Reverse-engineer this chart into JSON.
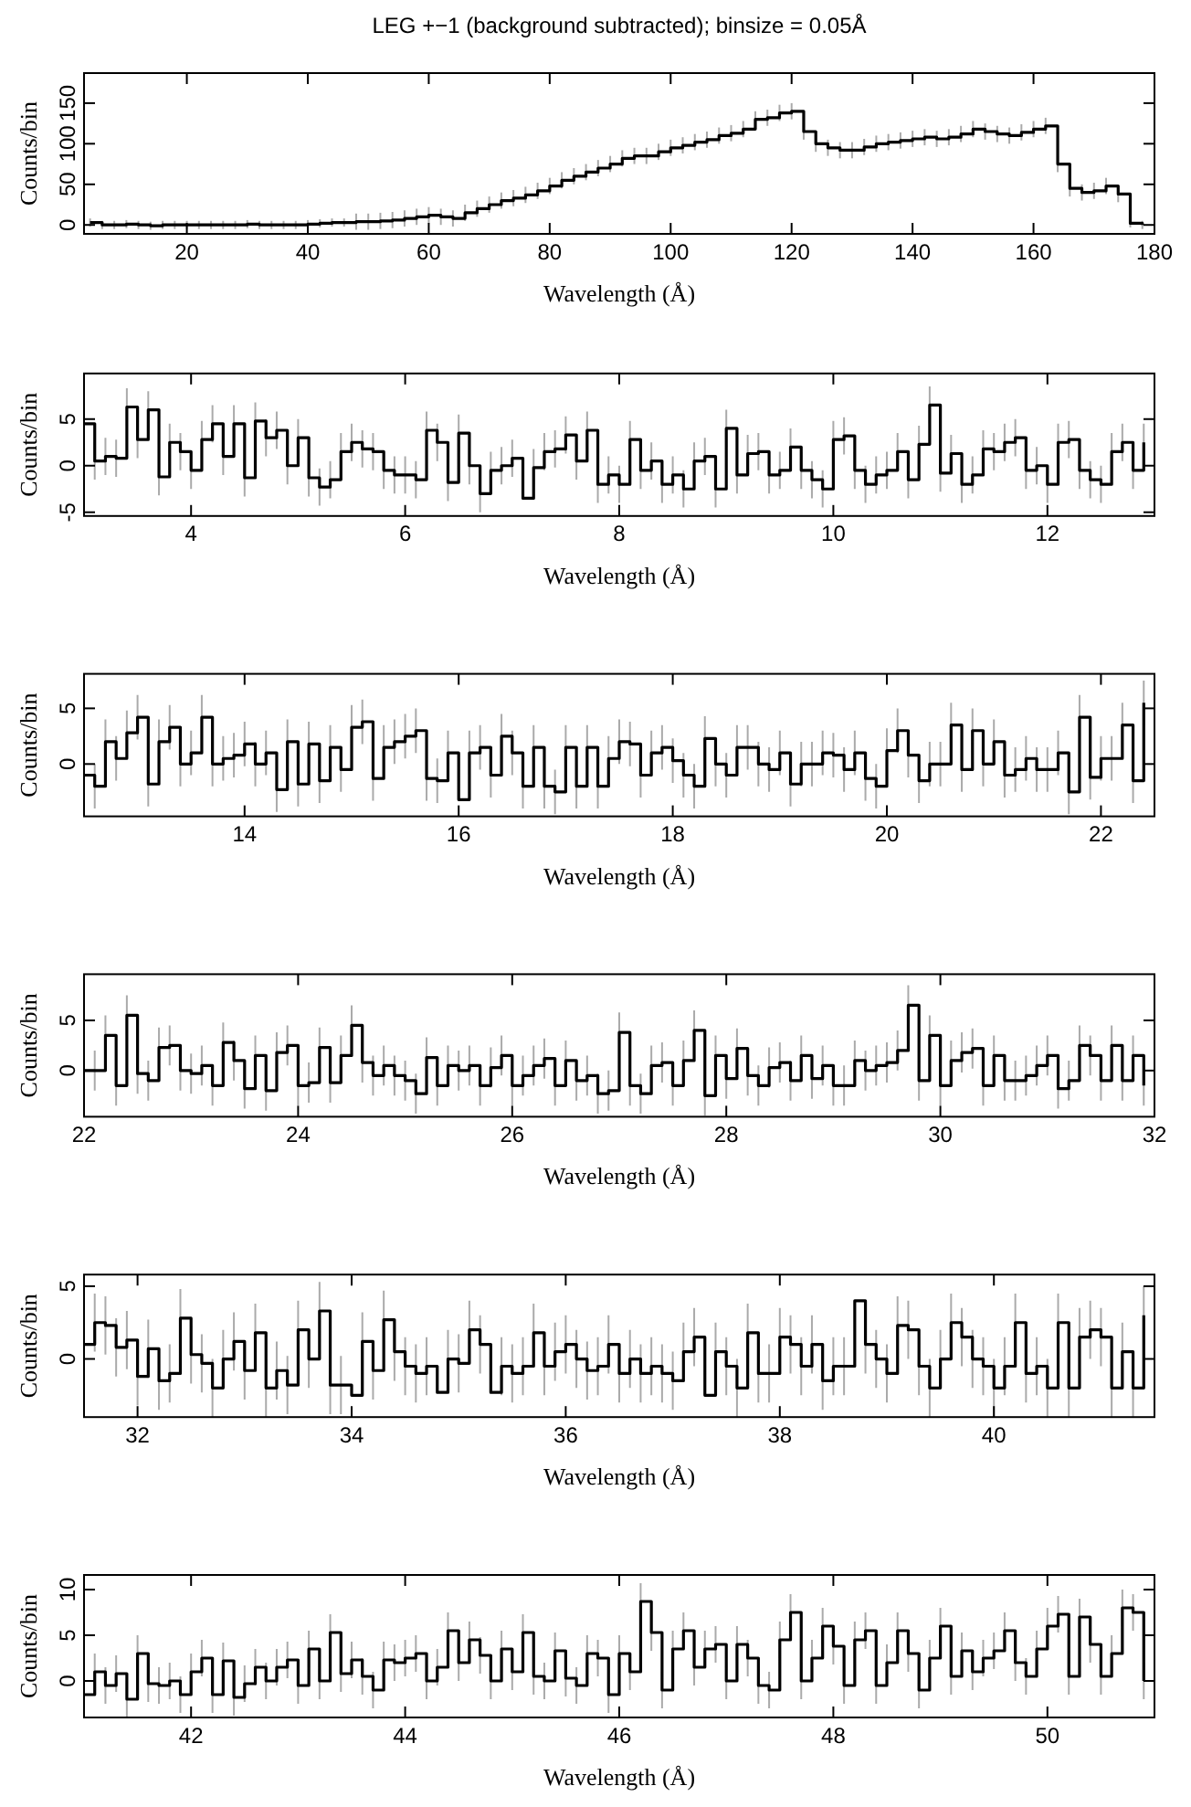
{
  "chart_data": [
    {
      "type": "step",
      "title": "LEG +−1 (background subtracted); binsize = 0.05Å",
      "xlabel": "Wavelength (Å)",
      "ylabel": "Counts/bin",
      "color": "#000000",
      "xlim": [
        3,
        180
      ],
      "ylim": [
        -11,
        187
      ],
      "xticks": [
        20,
        40,
        60,
        80,
        100,
        120,
        140,
        160,
        180
      ],
      "yticks": [
        0,
        50,
        100,
        150
      ],
      "x": [
        4,
        6,
        8,
        10,
        12,
        14,
        16,
        18,
        20,
        22,
        24,
        26,
        28,
        30,
        32,
        34,
        36,
        38,
        40,
        42,
        44,
        46,
        48,
        50,
        52,
        54,
        56,
        58,
        60,
        62,
        64,
        66,
        68,
        70,
        72,
        74,
        76,
        78,
        80,
        82,
        84,
        86,
        88,
        90,
        92,
        94,
        96,
        98,
        100,
        102,
        104,
        106,
        108,
        110,
        112,
        114,
        116,
        118,
        120,
        122,
        124,
        126,
        128,
        130,
        132,
        134,
        136,
        138,
        140,
        142,
        144,
        146,
        148,
        150,
        152,
        154,
        156,
        158,
        160,
        162,
        164,
        166,
        168,
        170,
        172,
        174,
        176,
        178
      ],
      "values": [
        3,
        0,
        0,
        1,
        0,
        -1,
        0,
        0,
        0,
        0,
        0,
        0,
        0,
        1,
        0,
        0,
        0,
        0,
        1,
        2,
        3,
        3,
        4,
        4,
        5,
        6,
        8,
        10,
        12,
        10,
        8,
        15,
        20,
        25,
        30,
        33,
        37,
        42,
        48,
        55,
        60,
        65,
        70,
        75,
        82,
        85,
        85,
        90,
        95,
        98,
        102,
        105,
        110,
        113,
        118,
        130,
        132,
        138,
        140,
        115,
        100,
        95,
        92,
        92,
        96,
        100,
        102,
        104,
        106,
        108,
        106,
        108,
        112,
        118,
        115,
        112,
        110,
        114,
        118,
        122,
        75,
        45,
        40,
        42,
        48,
        38,
        2,
        0
      ],
      "errors": [
        5,
        5,
        5,
        5,
        5,
        5,
        5,
        5,
        5,
        5,
        5,
        5,
        5,
        5,
        5,
        5,
        5,
        5,
        5,
        5,
        5,
        5,
        10,
        10,
        10,
        10,
        10,
        10,
        10,
        10,
        10,
        10,
        10,
        10,
        10,
        10,
        10,
        10,
        10,
        10,
        10,
        10,
        10,
        10,
        10,
        10,
        10,
        10,
        10,
        10,
        10,
        10,
        10,
        10,
        10,
        10,
        10,
        10,
        10,
        10,
        10,
        10,
        10,
        10,
        10,
        10,
        10,
        10,
        10,
        10,
        10,
        10,
        10,
        10,
        10,
        10,
        10,
        10,
        10,
        10,
        10,
        10,
        10,
        10,
        10,
        10,
        5,
        5
      ]
    },
    {
      "type": "step",
      "xlabel": "Wavelength (Å)",
      "ylabel": "Counts/bin",
      "color": "#000000",
      "xlim": [
        3,
        13
      ],
      "ylim": [
        -5.4,
        9.9
      ],
      "xticks": [
        4,
        6,
        8,
        10,
        12
      ],
      "yticks": [
        -5,
        0,
        5
      ],
      "x": [
        3.0,
        3.1,
        3.2,
        3.3,
        3.4,
        3.5,
        3.6,
        3.7,
        3.8,
        3.9,
        4.0,
        4.1,
        4.2,
        4.3,
        4.4,
        4.5,
        4.6,
        4.7,
        4.8,
        4.9,
        5.0,
        5.1,
        5.2,
        5.3,
        5.4,
        5.5,
        5.6,
        5.7,
        5.8,
        5.9,
        6.0,
        6.1,
        6.2,
        6.3,
        6.4,
        6.5,
        6.6,
        6.7,
        6.8,
        6.9,
        7.0,
        7.1,
        7.2,
        7.3,
        7.4,
        7.5,
        7.6,
        7.7,
        7.8,
        7.9,
        8.0,
        8.1,
        8.2,
        8.3,
        8.4,
        8.5,
        8.6,
        8.7,
        8.8,
        8.9,
        9.0,
        9.1,
        9.2,
        9.3,
        9.4,
        9.5,
        9.6,
        9.7,
        9.8,
        9.9,
        10.0,
        10.1,
        10.2,
        10.3,
        10.4,
        10.5,
        10.6,
        10.7,
        10.8,
        10.9,
        11.0,
        11.1,
        11.2,
        11.3,
        11.4,
        11.5,
        11.6,
        11.7,
        11.8,
        11.9,
        12.0,
        12.1,
        12.2,
        12.3,
        12.4,
        12.5,
        12.6,
        12.7,
        12.8,
        12.9
      ],
      "values": [
        4.5,
        0.5,
        1,
        0.8,
        6.3,
        2.8,
        6,
        -1.2,
        2.5,
        1.5,
        -0.5,
        2.8,
        4.5,
        1,
        4.5,
        -1.3,
        4.8,
        3,
        3.8,
        0,
        3,
        -1.3,
        -2.3,
        -1.5,
        1.5,
        2.5,
        1.8,
        1.5,
        -0.5,
        -1,
        -1,
        -1.5,
        3.8,
        2.5,
        -1.8,
        3.5,
        0,
        -3,
        -0.5,
        0,
        0.8,
        -3.5,
        -0.2,
        1.5,
        1.8,
        3.3,
        0.5,
        3.8,
        -2,
        -1,
        -2,
        2.8,
        -0.5,
        0.5,
        -2,
        -1,
        -2.5,
        0.5,
        1,
        -2.5,
        4,
        -1,
        1.3,
        1.5,
        -1,
        -0.5,
        2,
        -0.5,
        -1.5,
        -2.5,
        2.8,
        3.2,
        -0.5,
        -2,
        -1,
        -0.5,
        1.5,
        -1.5,
        2.3,
        6.5,
        -0.8,
        1.3,
        -2,
        -1,
        1.8,
        1.5,
        2.5,
        3,
        -0.5,
        0,
        -2,
        2.5,
        2.8,
        -0.5,
        -1.5,
        -2,
        1.5,
        2.5,
        -0.5,
        2.5
      ],
      "errors": [
        2,
        2,
        2,
        2,
        2,
        2,
        2,
        2,
        2,
        2,
        2,
        2,
        2,
        2,
        2,
        2,
        2,
        2,
        2,
        2,
        2,
        2,
        2,
        2,
        2,
        2,
        2,
        2,
        2,
        2,
        2,
        2,
        2,
        2,
        2,
        2,
        2,
        2,
        2,
        2,
        2,
        null,
        2,
        2,
        2,
        2,
        2,
        2,
        2,
        2,
        2,
        2,
        2,
        2,
        2,
        2,
        2,
        2,
        2,
        2,
        2,
        2,
        2,
        2,
        2,
        2,
        2,
        2,
        2,
        2,
        2,
        2,
        2,
        2,
        2,
        2,
        2,
        2,
        2,
        2,
        2,
        2,
        2,
        2,
        2,
        2,
        2,
        2,
        2,
        2,
        2,
        2,
        2,
        2,
        2,
        2,
        2,
        2,
        2,
        2
      ]
    },
    {
      "type": "step",
      "xlabel": "Wavelength (Å)",
      "ylabel": "Counts/bin",
      "color": "#000000",
      "xlim": [
        12.5,
        22.5
      ],
      "ylim": [
        -4.7,
        8.1
      ],
      "xticks": [
        14,
        16,
        18,
        20,
        22
      ],
      "yticks": [
        0,
        5
      ],
      "x": [
        12.5,
        12.6,
        12.7,
        12.8,
        12.9,
        13.0,
        13.1,
        13.2,
        13.3,
        13.4,
        13.5,
        13.6,
        13.7,
        13.8,
        13.9,
        14.0,
        14.1,
        14.2,
        14.3,
        14.4,
        14.5,
        14.6,
        14.7,
        14.8,
        14.9,
        15.0,
        15.1,
        15.2,
        15.3,
        15.4,
        15.5,
        15.6,
        15.7,
        15.8,
        15.9,
        16.0,
        16.1,
        16.2,
        16.3,
        16.4,
        16.5,
        16.6,
        16.7,
        16.8,
        16.9,
        17.0,
        17.1,
        17.2,
        17.3,
        17.4,
        17.5,
        17.6,
        17.7,
        17.8,
        17.9,
        18.0,
        18.1,
        18.2,
        18.3,
        18.4,
        18.5,
        18.6,
        18.7,
        18.8,
        18.9,
        19.0,
        19.1,
        19.2,
        19.3,
        19.4,
        19.5,
        19.6,
        19.7,
        19.8,
        19.9,
        20.0,
        20.1,
        20.2,
        20.3,
        20.4,
        20.5,
        20.6,
        20.7,
        20.8,
        20.9,
        21.0,
        21.1,
        21.2,
        21.3,
        21.4,
        21.5,
        21.6,
        21.7,
        21.8,
        21.9,
        22.0,
        22.1,
        22.2,
        22.3,
        22.4
      ],
      "values": [
        -1,
        -2,
        2,
        0.5,
        2.8,
        4.2,
        -1.8,
        2,
        3.3,
        0,
        1,
        4.2,
        0,
        0.5,
        0.8,
        1.8,
        0,
        1,
        -2.3,
        2,
        -1.8,
        1.8,
        -1.5,
        1.5,
        -0.5,
        3.3,
        3.8,
        -1.3,
        1.5,
        2,
        2.5,
        3,
        -1.3,
        -1.5,
        1,
        -3.2,
        1,
        1.5,
        -1,
        2.5,
        1,
        -2,
        1.5,
        -2,
        -2.5,
        1.5,
        -2,
        1.5,
        -2,
        0.5,
        2,
        1.8,
        -1,
        1,
        1.5,
        0.3,
        -1,
        -2,
        2.3,
        0,
        -1,
        1.5,
        1.5,
        0,
        -0.5,
        1,
        -1.8,
        0,
        0,
        1,
        0.8,
        -0.5,
        1,
        -1.3,
        -2,
        1.2,
        3,
        0.8,
        -1.5,
        0,
        0,
        3.5,
        -0.5,
        3,
        0,
        2,
        -1,
        -0.5,
        0.5,
        -0.5,
        -0.5,
        1,
        -2.5,
        4.2,
        -1.2,
        0.5,
        0.5,
        3.5,
        -1.5,
        5.5
      ],
      "errors": [
        2,
        2,
        2,
        2,
        2,
        2,
        2,
        2,
        2,
        2,
        2,
        2,
        2,
        2,
        2,
        2,
        2,
        2,
        2,
        2,
        2,
        2,
        2,
        2,
        2,
        2,
        2,
        2,
        2,
        2,
        2,
        2,
        2,
        2,
        2,
        null,
        2,
        2,
        2,
        2,
        2,
        2,
        2,
        2,
        2,
        2,
        2,
        2,
        2,
        2,
        2,
        2,
        2,
        2,
        2,
        2,
        2,
        2,
        2,
        2,
        2,
        2,
        2,
        2,
        2,
        2,
        2,
        2,
        2,
        2,
        2,
        2,
        2,
        2,
        2,
        2,
        2,
        2,
        2,
        2,
        2,
        2,
        2,
        2,
        2,
        2,
        2,
        2,
        2,
        2,
        2,
        2,
        2,
        2,
        2,
        2,
        2,
        2,
        2,
        2
      ]
    },
    {
      "type": "step",
      "xlabel": "Wavelength (Å)",
      "ylabel": "Counts/bin",
      "color": "#000000",
      "xlim": [
        22,
        32
      ],
      "ylim": [
        -4.6,
        9.6
      ],
      "xticks": [
        22,
        24,
        26,
        28,
        30,
        32
      ],
      "yticks": [
        0,
        5
      ],
      "x": [
        22.0,
        22.1,
        22.2,
        22.3,
        22.4,
        22.5,
        22.6,
        22.7,
        22.8,
        22.9,
        23.0,
        23.1,
        23.2,
        23.3,
        23.4,
        23.5,
        23.6,
        23.7,
        23.8,
        23.9,
        24.0,
        24.1,
        24.2,
        24.3,
        24.4,
        24.5,
        24.6,
        24.7,
        24.8,
        24.9,
        25.0,
        25.1,
        25.2,
        25.3,
        25.4,
        25.5,
        25.6,
        25.7,
        25.8,
        25.9,
        26.0,
        26.1,
        26.2,
        26.3,
        26.4,
        26.5,
        26.6,
        26.7,
        26.8,
        26.9,
        27.0,
        27.1,
        27.2,
        27.3,
        27.4,
        27.5,
        27.6,
        27.7,
        27.8,
        27.9,
        28.0,
        28.1,
        28.2,
        28.3,
        28.4,
        28.5,
        28.6,
        28.7,
        28.8,
        28.9,
        29.0,
        29.1,
        29.2,
        29.3,
        29.4,
        29.5,
        29.6,
        29.7,
        29.8,
        29.9,
        30.0,
        30.1,
        30.2,
        30.3,
        30.4,
        30.5,
        30.6,
        30.7,
        30.8,
        30.9,
        31.0,
        31.1,
        31.2,
        31.3,
        31.4,
        31.5,
        31.6,
        31.7,
        31.8,
        31.9
      ],
      "values": [
        0,
        0,
        3.5,
        -1.5,
        5.5,
        -0.3,
        -1,
        2.3,
        2.5,
        0,
        -0.3,
        0.5,
        -1.5,
        2.8,
        1,
        -1.8,
        1.5,
        -2,
        1.8,
        2.5,
        -1.5,
        -1.2,
        2.3,
        -1.2,
        1.5,
        4.5,
        0.8,
        -0.5,
        0.5,
        -0.5,
        -1,
        -2.3,
        1.3,
        -1.5,
        0.5,
        0,
        0.5,
        -1.5,
        0.3,
        1.5,
        -1.5,
        -0.5,
        0.5,
        1.2,
        -1.5,
        1,
        -1,
        -0.5,
        -2.3,
        -2,
        3.8,
        -1.5,
        -2.3,
        0.5,
        0.8,
        -1.5,
        1,
        4,
        -2.5,
        1.5,
        -0.8,
        2.2,
        -0.5,
        -1.5,
        0.3,
        0.8,
        -1,
        1.5,
        -0.8,
        0.5,
        -1.5,
        -1.5,
        1,
        0,
        0.5,
        0.8,
        2,
        6.5,
        -1,
        3.5,
        -1.5,
        1,
        1.8,
        2.2,
        -1.5,
        1.5,
        -1,
        -1,
        -0.5,
        0.5,
        1.5,
        -1.8,
        -1,
        2.5,
        1.5,
        -1,
        2.5,
        -1,
        1.5,
        -1.5
      ],
      "errors": [
        2,
        2,
        2,
        2,
        2,
        2,
        2,
        2,
        2,
        2,
        2,
        2,
        2,
        2,
        2,
        2,
        2,
        2,
        2,
        2,
        2,
        2,
        2,
        2,
        2,
        2,
        2,
        2,
        2,
        2,
        2,
        2,
        2,
        2,
        2,
        2,
        2,
        2,
        2,
        2,
        2,
        2,
        2,
        2,
        2,
        2,
        2,
        2,
        2,
        2,
        2,
        2,
        2,
        2,
        2,
        2,
        2,
        2,
        2,
        2,
        2,
        2,
        2,
        2,
        2,
        2,
        2,
        2,
        2,
        2,
        2,
        2,
        2,
        2,
        2,
        2,
        2,
        2,
        2,
        2,
        2,
        2,
        2,
        2,
        2,
        2,
        2,
        2,
        2,
        2,
        2,
        2,
        2,
        2,
        2,
        2,
        2,
        2,
        2,
        2
      ]
    },
    {
      "type": "step",
      "xlabel": "Wavelength (Å)",
      "ylabel": "Counts/bin",
      "color": "#000000",
      "xlim": [
        31.5,
        41.5
      ],
      "ylim": [
        -4,
        5.8
      ],
      "xticks": [
        32,
        34,
        36,
        38,
        40
      ],
      "yticks": [
        0,
        5
      ],
      "x": [
        31.5,
        31.6,
        31.7,
        31.8,
        31.9,
        32.0,
        32.1,
        32.2,
        32.3,
        32.4,
        32.5,
        32.6,
        32.7,
        32.8,
        32.9,
        33.0,
        33.1,
        33.2,
        33.3,
        33.4,
        33.5,
        33.6,
        33.7,
        33.8,
        33.9,
        34.0,
        34.1,
        34.2,
        34.3,
        34.4,
        34.5,
        34.6,
        34.7,
        34.8,
        34.9,
        35.0,
        35.1,
        35.2,
        35.3,
        35.4,
        35.5,
        35.6,
        35.7,
        35.8,
        35.9,
        36.0,
        36.1,
        36.2,
        36.3,
        36.4,
        36.5,
        36.6,
        36.7,
        36.8,
        36.9,
        37.0,
        37.1,
        37.2,
        37.3,
        37.4,
        37.5,
        37.6,
        37.7,
        37.8,
        37.9,
        38.0,
        38.1,
        38.2,
        38.3,
        38.4,
        38.5,
        38.6,
        38.7,
        38.8,
        38.9,
        39.0,
        39.1,
        39.2,
        39.3,
        39.4,
        39.5,
        39.6,
        39.7,
        39.8,
        39.9,
        40.0,
        40.1,
        40.2,
        40.3,
        40.4,
        40.5,
        40.6,
        40.7,
        40.8,
        40.9,
        41.0,
        41.1,
        41.2,
        41.3,
        41.4
      ],
      "values": [
        1,
        2.5,
        2.3,
        0.8,
        1.3,
        -1.2,
        0.7,
        -1.5,
        -1,
        2.8,
        0.3,
        -0.3,
        -2,
        0,
        1.2,
        -0.8,
        1.8,
        -2,
        -0.8,
        -1.8,
        2,
        0,
        3.3,
        -1.8,
        -1.8,
        -2.5,
        1.2,
        -0.8,
        2.7,
        0.5,
        -0.5,
        -1,
        -0.5,
        -2.3,
        0,
        -0.3,
        2,
        1,
        -2.3,
        -0.5,
        -1,
        -0.5,
        1.8,
        -0.5,
        0.5,
        1,
        0,
        -0.8,
        -0.5,
        1,
        -1,
        0,
        -1,
        -0.5,
        -1,
        -1.5,
        0.5,
        1.5,
        -2.5,
        0.5,
        -0.5,
        -2,
        1.8,
        -1,
        -1,
        1.5,
        1,
        -0.5,
        1,
        -1.5,
        -0.5,
        -0.5,
        4,
        1,
        0,
        -1,
        2.3,
        2,
        -0.5,
        -2,
        0,
        2.5,
        1.5,
        0,
        -0.5,
        -2,
        -0.5,
        2.5,
        -1,
        -0.5,
        -2,
        2.5,
        -2,
        1.5,
        2,
        1.5,
        -2,
        0.5,
        -2,
        3
      ],
      "errors": [
        2,
        2,
        2,
        2,
        2,
        2,
        2,
        2,
        2,
        2,
        2,
        2,
        2,
        2,
        2,
        2,
        2,
        2,
        2,
        2,
        2,
        2,
        2,
        2,
        2,
        null,
        2,
        2,
        2,
        2,
        2,
        2,
        2,
        null,
        2,
        2,
        2,
        2,
        null,
        2,
        2,
        2,
        2,
        2,
        2,
        2,
        2,
        2,
        2,
        2,
        2,
        2,
        2,
        2,
        2,
        2,
        2,
        2,
        null,
        2,
        2,
        2,
        2,
        2,
        2,
        2,
        2,
        2,
        2,
        2,
        2,
        2,
        null,
        2,
        2,
        2,
        2,
        2,
        2,
        2,
        2,
        2,
        2,
        2,
        2,
        2,
        2,
        2,
        2,
        2,
        2,
        2,
        2,
        2,
        2,
        2,
        2,
        2,
        2,
        2
      ]
    },
    {
      "type": "step",
      "xlabel": "Wavelength (Å)",
      "ylabel": "Counts/bin",
      "color": "#000000",
      "xlim": [
        41,
        51
      ],
      "ylim": [
        -4,
        11.6
      ],
      "xticks": [
        42,
        44,
        46,
        48,
        50
      ],
      "yticks": [
        0,
        5,
        10
      ],
      "x": [
        41.0,
        41.1,
        41.2,
        41.3,
        41.4,
        41.5,
        41.6,
        41.7,
        41.8,
        41.9,
        42.0,
        42.1,
        42.2,
        42.3,
        42.4,
        42.5,
        42.6,
        42.7,
        42.8,
        42.9,
        43.0,
        43.1,
        43.2,
        43.3,
        43.4,
        43.5,
        43.6,
        43.7,
        43.8,
        43.9,
        44.0,
        44.1,
        44.2,
        44.3,
        44.4,
        44.5,
        44.6,
        44.7,
        44.8,
        44.9,
        45.0,
        45.1,
        45.2,
        45.3,
        45.4,
        45.5,
        45.6,
        45.7,
        45.8,
        45.9,
        46.0,
        46.1,
        46.2,
        46.3,
        46.4,
        46.5,
        46.6,
        46.7,
        46.8,
        46.9,
        47.0,
        47.1,
        47.2,
        47.3,
        47.4,
        47.5,
        47.6,
        47.7,
        47.8,
        47.9,
        48.0,
        48.1,
        48.2,
        48.3,
        48.4,
        48.5,
        48.6,
        48.7,
        48.8,
        48.9,
        49.0,
        49.1,
        49.2,
        49.3,
        49.4,
        49.5,
        49.6,
        49.7,
        49.8,
        49.9,
        50.0,
        50.1,
        50.2,
        50.3,
        50.4,
        50.5,
        50.6,
        50.7,
        50.8,
        50.9
      ],
      "values": [
        -1.5,
        1,
        -0.5,
        0.8,
        -2,
        3,
        -0.3,
        -0.5,
        0,
        -1.5,
        1,
        2.5,
        -1.5,
        2.2,
        -1.8,
        -0.3,
        1.5,
        0,
        1.5,
        2.3,
        -0.5,
        3.5,
        0,
        5.3,
        0.8,
        2.3,
        0.5,
        -1,
        2.3,
        2,
        2.5,
        3,
        0,
        1.5,
        5.5,
        2,
        4.5,
        2.8,
        0,
        3.5,
        1,
        5.3,
        0.5,
        0,
        3.3,
        0.3,
        -0.5,
        3,
        2.5,
        -1.5,
        3,
        1,
        8.7,
        5.3,
        -1,
        3.5,
        5.5,
        1.5,
        3.5,
        4,
        0,
        4,
        2.5,
        -0.5,
        -1,
        4.5,
        7.5,
        0,
        2.5,
        6,
        3.8,
        -0.5,
        4.5,
        5.5,
        -0.5,
        2,
        5.5,
        3,
        -1,
        2.5,
        6,
        0.5,
        3.3,
        1,
        2.5,
        3.3,
        5.5,
        2,
        0.5,
        3.5,
        6,
        7.3,
        0.5,
        7,
        4,
        0.5,
        3,
        8,
        7.5,
        0
      ],
      "errors": [
        2,
        2,
        2,
        2,
        2,
        2,
        2,
        2,
        2,
        2,
        2,
        2,
        2,
        2,
        2,
        2,
        2,
        2,
        2,
        2,
        2,
        2,
        2,
        2,
        2,
        2,
        2,
        2,
        2,
        2,
        2,
        2,
        2,
        2,
        2,
        2,
        2,
        2,
        2,
        2,
        2,
        2,
        2,
        2,
        2,
        2,
        2,
        2,
        2,
        2,
        2,
        2,
        2,
        2,
        2,
        2,
        2,
        2,
        2,
        2,
        2,
        2,
        2,
        2,
        2,
        2,
        2,
        2,
        2,
        2,
        2,
        2,
        2,
        2,
        2,
        2,
        2,
        2,
        2,
        2,
        2,
        2,
        2,
        2,
        2,
        2,
        2,
        2,
        2,
        2,
        2,
        2,
        2,
        2,
        2,
        2,
        2,
        2,
        2,
        2
      ]
    }
  ]
}
